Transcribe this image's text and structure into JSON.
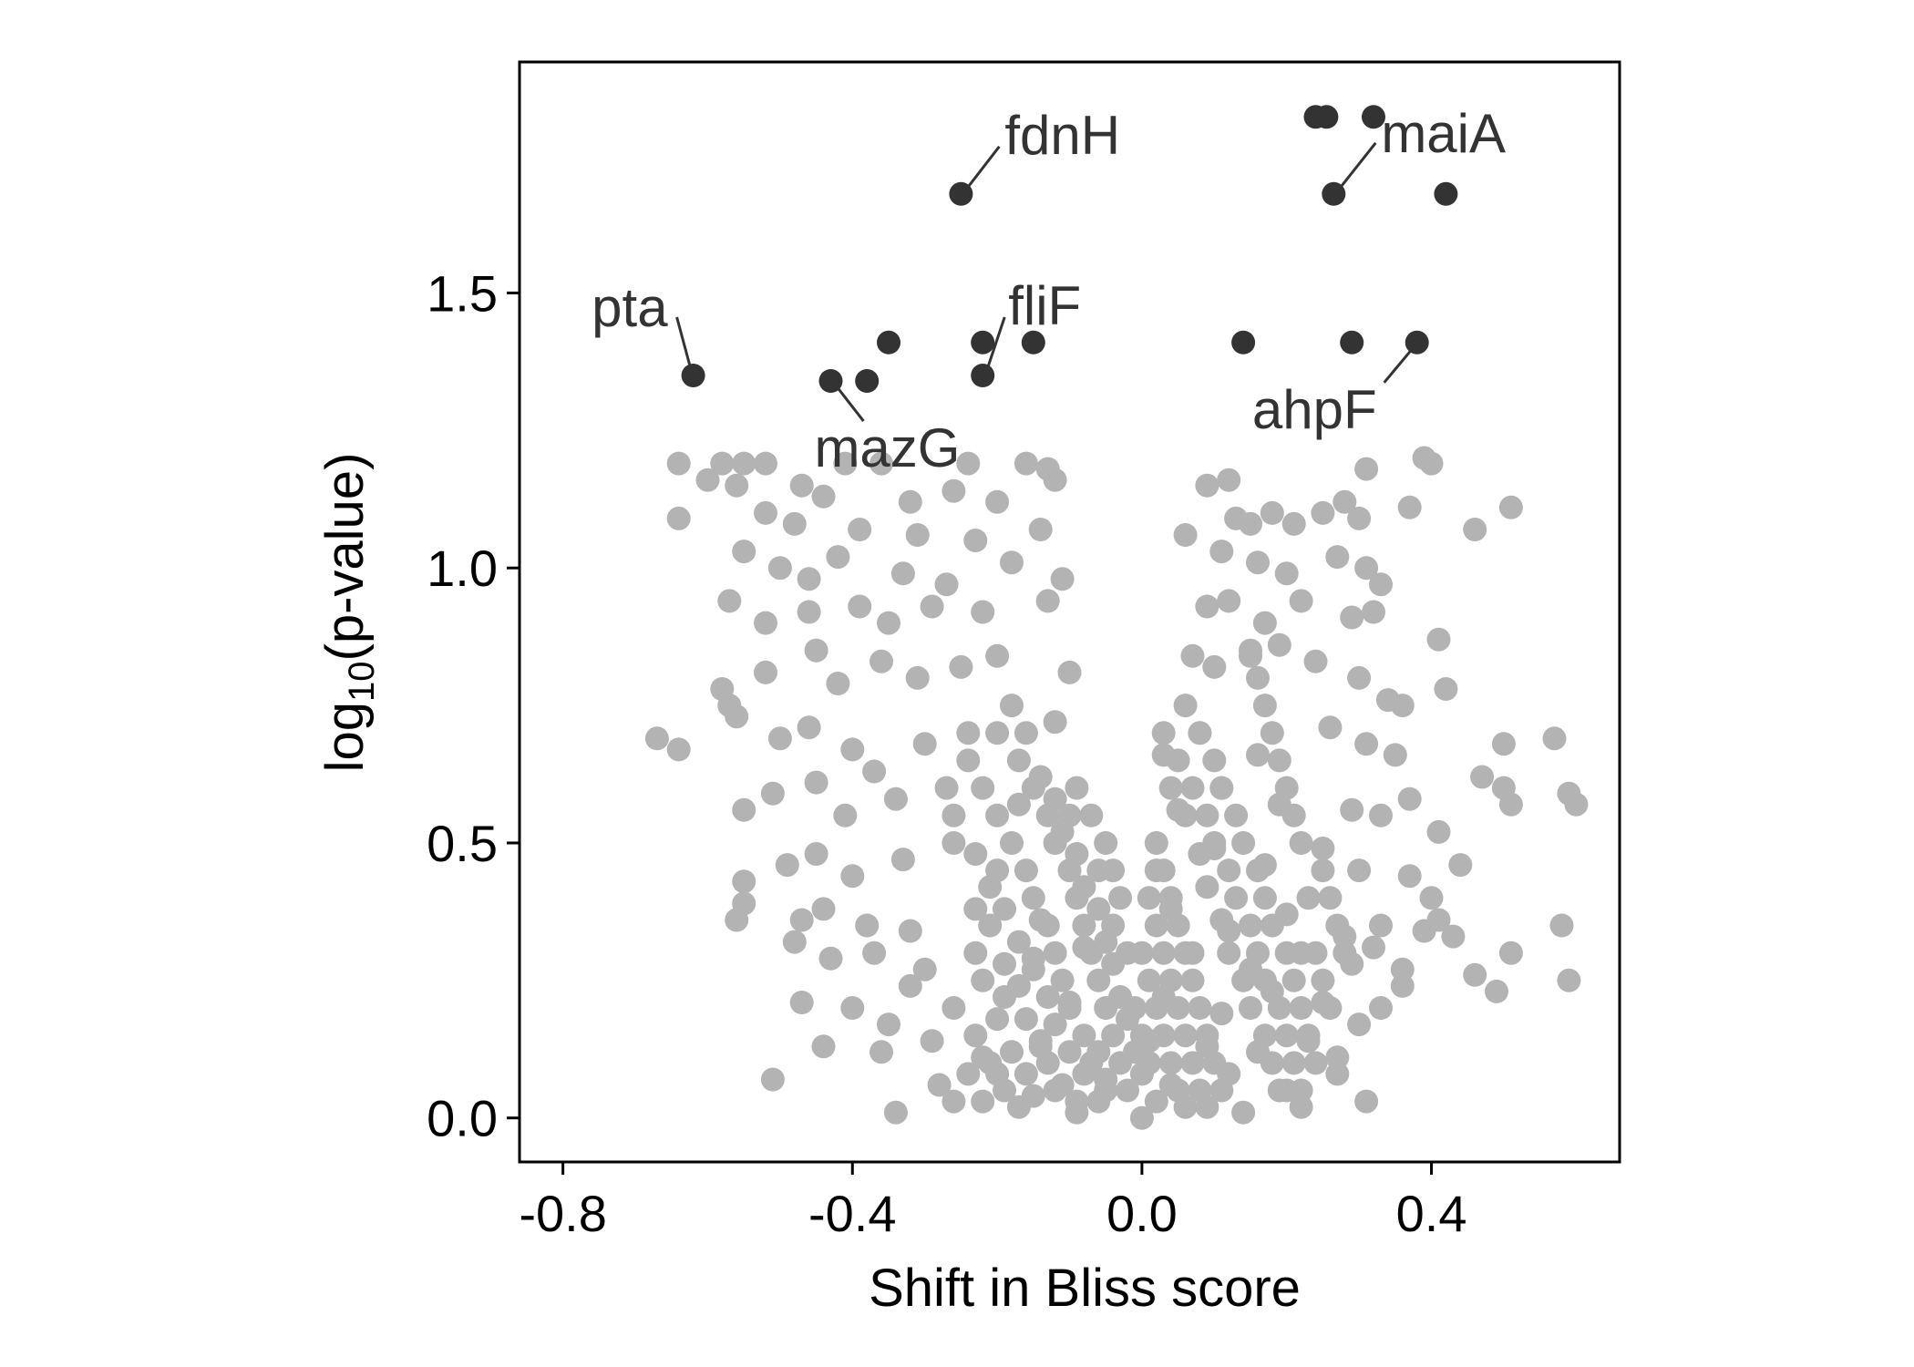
{
  "chart_data": {
    "type": "scatter",
    "xlabel": "Shift in Bliss score",
    "ylabel_main": "log",
    "ylabel_sub": "10",
    "ylabel_rest": "(p-value)",
    "xlim": [
      -0.86,
      0.66
    ],
    "ylim": [
      -0.08,
      1.92
    ],
    "xticks": [
      -0.8,
      -0.4,
      0.0,
      0.4
    ],
    "xtick_labels": [
      "-0.8",
      "-0.4",
      "0.0",
      "0.4"
    ],
    "yticks": [
      0.0,
      0.5,
      1.0,
      1.5
    ],
    "ytick_labels": [
      "0.0",
      "0.5",
      "1.0",
      "1.5"
    ],
    "grid": false,
    "colors": {
      "significant": "#333333",
      "background": "#b3b3b3",
      "label": "#333333"
    },
    "highlighted_points": [
      {
        "x": 0.24,
        "y": 1.82
      },
      {
        "x": 0.255,
        "y": 1.82
      },
      {
        "x": 0.32,
        "y": 1.82
      },
      {
        "x": -0.25,
        "y": 1.68
      },
      {
        "x": 0.265,
        "y": 1.68
      },
      {
        "x": 0.42,
        "y": 1.68
      },
      {
        "x": -0.35,
        "y": 1.41
      },
      {
        "x": -0.22,
        "y": 1.41
      },
      {
        "x": -0.15,
        "y": 1.41
      },
      {
        "x": 0.14,
        "y": 1.41
      },
      {
        "x": 0.29,
        "y": 1.41
      },
      {
        "x": 0.38,
        "y": 1.41
      },
      {
        "x": -0.62,
        "y": 1.35
      },
      {
        "x": -0.43,
        "y": 1.34
      },
      {
        "x": -0.38,
        "y": 1.34
      },
      {
        "x": -0.22,
        "y": 1.35
      }
    ],
    "annotations": [
      {
        "text": "fdnH",
        "x": -0.25,
        "y": 1.68
      },
      {
        "text": "maiA",
        "x": 0.265,
        "y": 1.68
      },
      {
        "text": "pta",
        "x": -0.62,
        "y": 1.35
      },
      {
        "text": "fliF",
        "x": -0.22,
        "y": 1.35
      },
      {
        "text": "mazG",
        "x": -0.43,
        "y": 1.34
      },
      {
        "text": "ahpF",
        "x": 0.38,
        "y": 1.41
      }
    ],
    "background_points": [
      [
        -0.64,
        1.19
      ],
      [
        -0.58,
        1.19
      ],
      [
        -0.55,
        1.19
      ],
      [
        -0.52,
        1.19
      ],
      [
        -0.41,
        1.19
      ],
      [
        -0.36,
        1.19
      ],
      [
        -0.24,
        1.19
      ],
      [
        -0.16,
        1.19
      ],
      [
        -0.13,
        1.18
      ],
      [
        -0.12,
        1.16
      ],
      [
        -0.6,
        1.16
      ],
      [
        -0.56,
        1.15
      ],
      [
        -0.47,
        1.15
      ],
      [
        -0.44,
        1.13
      ],
      [
        -0.32,
        1.12
      ],
      [
        -0.26,
        1.14
      ],
      [
        -0.2,
        1.12
      ],
      [
        0.09,
        1.15
      ],
      [
        0.12,
        1.16
      ],
      [
        0.31,
        1.18
      ],
      [
        -0.64,
        1.09
      ],
      [
        -0.52,
        1.1
      ],
      [
        -0.48,
        1.08
      ],
      [
        -0.39,
        1.07
      ],
      [
        -0.31,
        1.06
      ],
      [
        -0.23,
        1.05
      ],
      [
        -0.14,
        1.07
      ],
      [
        0.06,
        1.06
      ],
      [
        0.13,
        1.09
      ],
      [
        0.39,
        1.2
      ],
      [
        0.4,
        1.19
      ],
      [
        0.37,
        1.11
      ],
      [
        0.51,
        1.11
      ],
      [
        0.46,
        1.07
      ],
      [
        0.3,
        1.09
      ],
      [
        0.25,
        1.1
      ],
      [
        0.21,
        1.08
      ],
      [
        0.18,
        1.1
      ],
      [
        0.15,
        1.08
      ],
      [
        0.28,
        1.12
      ],
      [
        -0.55,
        1.03
      ],
      [
        -0.5,
        1.0
      ],
      [
        -0.46,
        0.98
      ],
      [
        -0.42,
        1.02
      ],
      [
        -0.33,
        0.99
      ],
      [
        -0.27,
        0.97
      ],
      [
        -0.18,
        1.01
      ],
      [
        -0.11,
        0.98
      ],
      [
        0.11,
        1.03
      ],
      [
        0.16,
        1.01
      ],
      [
        0.2,
        0.99
      ],
      [
        0.27,
        1.02
      ],
      [
        0.31,
        1.0
      ],
      [
        0.33,
        0.97
      ],
      [
        -0.57,
        0.94
      ],
      [
        -0.52,
        0.9
      ],
      [
        -0.46,
        0.92
      ],
      [
        -0.39,
        0.93
      ],
      [
        -0.35,
        0.9
      ],
      [
        -0.29,
        0.93
      ],
      [
        -0.22,
        0.92
      ],
      [
        -0.13,
        0.94
      ],
      [
        0.09,
        0.93
      ],
      [
        0.12,
        0.94
      ],
      [
        0.17,
        0.9
      ],
      [
        0.22,
        0.94
      ],
      [
        0.29,
        0.91
      ],
      [
        0.32,
        0.92
      ],
      [
        -0.58,
        0.78
      ],
      [
        -0.57,
        0.75
      ],
      [
        -0.56,
        0.73
      ],
      [
        -0.52,
        0.81
      ],
      [
        -0.45,
        0.85
      ],
      [
        -0.42,
        0.79
      ],
      [
        -0.36,
        0.83
      ],
      [
        -0.31,
        0.8
      ],
      [
        -0.25,
        0.82
      ],
      [
        -0.2,
        0.84
      ],
      [
        -0.1,
        0.81
      ],
      [
        0.07,
        0.84
      ],
      [
        0.1,
        0.82
      ],
      [
        0.15,
        0.84
      ],
      [
        0.19,
        0.86
      ],
      [
        0.24,
        0.83
      ],
      [
        0.3,
        0.8
      ],
      [
        0.34,
        0.76
      ],
      [
        0.36,
        0.75
      ],
      [
        0.41,
        0.87
      ],
      [
        0.42,
        0.78
      ],
      [
        -0.67,
        0.69
      ],
      [
        -0.64,
        0.67
      ],
      [
        -0.5,
        0.69
      ],
      [
        -0.46,
        0.71
      ],
      [
        -0.4,
        0.67
      ],
      [
        -0.37,
        0.63
      ],
      [
        -0.3,
        0.68
      ],
      [
        -0.24,
        0.7
      ],
      [
        -0.12,
        0.72
      ],
      [
        0.03,
        0.66
      ],
      [
        0.08,
        0.7
      ],
      [
        0.16,
        0.66
      ],
      [
        0.26,
        0.71
      ],
      [
        0.31,
        0.68
      ],
      [
        0.35,
        0.66
      ],
      [
        0.57,
        0.69
      ],
      [
        0.59,
        0.59
      ],
      [
        0.6,
        0.57
      ],
      [
        0.5,
        0.68
      ],
      [
        0.47,
        0.62
      ],
      [
        0.5,
        0.6
      ],
      [
        -0.55,
        0.56
      ],
      [
        -0.51,
        0.59
      ],
      [
        -0.45,
        0.61
      ],
      [
        -0.41,
        0.55
      ],
      [
        -0.34,
        0.58
      ],
      [
        -0.27,
        0.6
      ],
      [
        -0.17,
        0.57
      ],
      [
        -0.1,
        0.55
      ],
      [
        0.05,
        0.56
      ],
      [
        0.11,
        0.6
      ],
      [
        0.19,
        0.57
      ],
      [
        0.29,
        0.56
      ],
      [
        0.33,
        0.55
      ],
      [
        0.37,
        0.58
      ],
      [
        0.41,
        0.52
      ],
      [
        0.51,
        0.57
      ],
      [
        0.44,
        0.46
      ],
      [
        -0.55,
        0.43
      ],
      [
        -0.55,
        0.39
      ],
      [
        -0.56,
        0.36
      ],
      [
        -0.49,
        0.46
      ],
      [
        -0.45,
        0.48
      ],
      [
        -0.4,
        0.44
      ],
      [
        -0.33,
        0.47
      ],
      [
        -0.26,
        0.5
      ],
      [
        -0.2,
        0.45
      ],
      [
        -0.06,
        0.45
      ],
      [
        0.02,
        0.45
      ],
      [
        0.1,
        0.49
      ],
      [
        0.17,
        0.46
      ],
      [
        0.25,
        0.49
      ],
      [
        0.3,
        0.45
      ],
      [
        0.37,
        0.44
      ],
      [
        0.4,
        0.4
      ],
      [
        -0.47,
        0.36
      ],
      [
        -0.44,
        0.38
      ],
      [
        -0.38,
        0.35
      ],
      [
        -0.32,
        0.34
      ],
      [
        -0.23,
        0.38
      ],
      [
        -0.14,
        0.36
      ],
      [
        -0.04,
        0.35
      ],
      [
        0.04,
        0.38
      ],
      [
        0.12,
        0.34
      ],
      [
        0.2,
        0.37
      ],
      [
        0.28,
        0.33
      ],
      [
        0.33,
        0.35
      ],
      [
        0.39,
        0.34
      ],
      [
        0.41,
        0.36
      ],
      [
        0.43,
        0.33
      ],
      [
        0.58,
        0.35
      ],
      [
        -0.48,
        0.32
      ],
      [
        -0.43,
        0.29
      ],
      [
        -0.37,
        0.3
      ],
      [
        -0.3,
        0.27
      ],
      [
        -0.23,
        0.3
      ],
      [
        -0.15,
        0.29
      ],
      [
        -0.08,
        0.31
      ],
      [
        0.07,
        0.3
      ],
      [
        0.15,
        0.27
      ],
      [
        0.22,
        0.3
      ],
      [
        0.29,
        0.28
      ],
      [
        0.32,
        0.31
      ],
      [
        0.36,
        0.27
      ],
      [
        0.46,
        0.26
      ],
      [
        0.51,
        0.3
      ],
      [
        0.49,
        0.23
      ],
      [
        0.59,
        0.25
      ],
      [
        -0.47,
        0.21
      ],
      [
        -0.4,
        0.2
      ],
      [
        -0.35,
        0.17
      ],
      [
        -0.32,
        0.24
      ],
      [
        -0.26,
        0.2
      ],
      [
        -0.19,
        0.22
      ],
      [
        -0.1,
        0.21
      ],
      [
        0.03,
        0.22
      ],
      [
        0.11,
        0.19
      ],
      [
        0.18,
        0.23
      ],
      [
        0.25,
        0.21
      ],
      [
        0.3,
        0.17
      ],
      [
        0.33,
        0.2
      ],
      [
        0.36,
        0.24
      ],
      [
        -0.44,
        0.13
      ],
      [
        -0.36,
        0.12
      ],
      [
        -0.29,
        0.14
      ],
      [
        -0.22,
        0.11
      ],
      [
        -0.14,
        0.13
      ],
      [
        -0.06,
        0.12
      ],
      [
        0.01,
        0.14
      ],
      [
        0.09,
        0.13
      ],
      [
        0.16,
        0.12
      ],
      [
        0.23,
        0.14
      ],
      [
        0.27,
        0.11
      ],
      [
        -0.51,
        0.07
      ],
      [
        -0.28,
        0.06
      ],
      [
        -0.2,
        0.08
      ],
      [
        -0.12,
        0.05
      ],
      [
        -0.05,
        0.07
      ],
      [
        0.04,
        0.06
      ],
      [
        0.12,
        0.08
      ],
      [
        0.2,
        0.05
      ],
      [
        0.27,
        0.08
      ],
      [
        0.31,
        0.03
      ],
      [
        -0.34,
        0.01
      ],
      [
        -0.26,
        0.03
      ],
      [
        -0.17,
        0.02
      ],
      [
        -0.09,
        0.01
      ],
      [
        0.0,
        0.0
      ],
      [
        0.06,
        0.02
      ],
      [
        0.14,
        0.01
      ],
      [
        0.22,
        0.02
      ],
      [
        -0.24,
        0.65
      ],
      [
        -0.22,
        0.6
      ],
      [
        -0.2,
        0.55
      ],
      [
        -0.18,
        0.5
      ],
      [
        -0.16,
        0.45
      ],
      [
        -0.15,
        0.4
      ],
      [
        -0.13,
        0.35
      ],
      [
        -0.12,
        0.3
      ],
      [
        -0.11,
        0.25
      ],
      [
        -0.1,
        0.2
      ],
      [
        -0.08,
        0.15
      ],
      [
        -0.07,
        0.1
      ],
      [
        -0.05,
        0.05
      ],
      [
        -0.26,
        0.55
      ],
      [
        -0.23,
        0.48
      ],
      [
        -0.21,
        0.42
      ],
      [
        -0.19,
        0.38
      ],
      [
        -0.17,
        0.32
      ],
      [
        -0.15,
        0.27
      ],
      [
        -0.13,
        0.22
      ],
      [
        -0.12,
        0.17
      ],
      [
        -0.1,
        0.12
      ],
      [
        -0.08,
        0.08
      ],
      [
        -0.06,
        0.03
      ],
      [
        -0.2,
        0.7
      ],
      [
        -0.17,
        0.65
      ],
      [
        -0.15,
        0.6
      ],
      [
        -0.13,
        0.55
      ],
      [
        -0.12,
        0.5
      ],
      [
        -0.1,
        0.45
      ],
      [
        -0.09,
        0.4
      ],
      [
        -0.08,
        0.35
      ],
      [
        -0.07,
        0.3
      ],
      [
        -0.06,
        0.25
      ],
      [
        -0.05,
        0.2
      ],
      [
        -0.04,
        0.15
      ],
      [
        -0.03,
        0.1
      ],
      [
        -0.02,
        0.05
      ],
      [
        -0.18,
        0.75
      ],
      [
        -0.16,
        0.7
      ],
      [
        -0.14,
        0.62
      ],
      [
        -0.12,
        0.58
      ],
      [
        -0.11,
        0.52
      ],
      [
        -0.09,
        0.48
      ],
      [
        -0.08,
        0.42
      ],
      [
        -0.06,
        0.38
      ],
      [
        -0.05,
        0.32
      ],
      [
        -0.04,
        0.28
      ],
      [
        -0.03,
        0.22
      ],
      [
        -0.02,
        0.18
      ],
      [
        -0.01,
        0.12
      ],
      [
        0.0,
        0.08
      ],
      [
        -0.21,
        0.35
      ],
      [
        -0.19,
        0.28
      ],
      [
        -0.17,
        0.24
      ],
      [
        -0.16,
        0.18
      ],
      [
        -0.14,
        0.14
      ],
      [
        -0.13,
        0.1
      ],
      [
        -0.11,
        0.06
      ],
      [
        -0.09,
        0.03
      ],
      [
        -0.22,
        0.25
      ],
      [
        -0.2,
        0.18
      ],
      [
        -0.18,
        0.12
      ],
      [
        -0.16,
        0.08
      ],
      [
        -0.15,
        0.04
      ],
      [
        -0.23,
        0.15
      ],
      [
        -0.21,
        0.1
      ],
      [
        -0.19,
        0.05
      ],
      [
        -0.24,
        0.08
      ],
      [
        -0.22,
        0.03
      ],
      [
        0.03,
        0.7
      ],
      [
        0.05,
        0.65
      ],
      [
        0.07,
        0.6
      ],
      [
        0.09,
        0.55
      ],
      [
        0.1,
        0.5
      ],
      [
        0.12,
        0.45
      ],
      [
        0.13,
        0.4
      ],
      [
        0.15,
        0.35
      ],
      [
        0.16,
        0.3
      ],
      [
        0.17,
        0.25
      ],
      [
        0.19,
        0.2
      ],
      [
        0.2,
        0.15
      ],
      [
        0.21,
        0.1
      ],
      [
        0.22,
        0.05
      ],
      [
        0.04,
        0.6
      ],
      [
        0.06,
        0.55
      ],
      [
        0.08,
        0.48
      ],
      [
        0.09,
        0.42
      ],
      [
        0.11,
        0.36
      ],
      [
        0.12,
        0.3
      ],
      [
        0.14,
        0.25
      ],
      [
        0.15,
        0.2
      ],
      [
        0.17,
        0.15
      ],
      [
        0.18,
        0.1
      ],
      [
        0.19,
        0.05
      ],
      [
        0.06,
        0.75
      ],
      [
        0.08,
        0.7
      ],
      [
        0.1,
        0.65
      ],
      [
        0.11,
        0.6
      ],
      [
        0.13,
        0.55
      ],
      [
        0.14,
        0.5
      ],
      [
        0.16,
        0.45
      ],
      [
        0.17,
        0.4
      ],
      [
        0.18,
        0.35
      ],
      [
        0.2,
        0.3
      ],
      [
        0.21,
        0.25
      ],
      [
        0.22,
        0.2
      ],
      [
        0.23,
        0.15
      ],
      [
        0.24,
        0.1
      ],
      [
        0.02,
        0.5
      ],
      [
        0.03,
        0.45
      ],
      [
        0.04,
        0.4
      ],
      [
        0.05,
        0.35
      ],
      [
        0.06,
        0.3
      ],
      [
        0.07,
        0.25
      ],
      [
        0.08,
        0.2
      ],
      [
        0.09,
        0.15
      ],
      [
        0.1,
        0.1
      ],
      [
        0.11,
        0.05
      ],
      [
        0.01,
        0.4
      ],
      [
        0.02,
        0.35
      ],
      [
        0.03,
        0.3
      ],
      [
        0.04,
        0.25
      ],
      [
        0.05,
        0.2
      ],
      [
        0.06,
        0.15
      ],
      [
        0.07,
        0.1
      ],
      [
        0.08,
        0.05
      ],
      [
        0.09,
        0.02
      ],
      [
        0.0,
        0.3
      ],
      [
        0.01,
        0.25
      ],
      [
        0.02,
        0.2
      ],
      [
        0.03,
        0.15
      ],
      [
        0.04,
        0.1
      ],
      [
        0.05,
        0.05
      ],
      [
        0.25,
        0.45
      ],
      [
        0.26,
        0.4
      ],
      [
        0.27,
        0.35
      ],
      [
        0.28,
        0.3
      ],
      [
        0.25,
        0.25
      ],
      [
        0.26,
        0.2
      ],
      [
        0.24,
        0.3
      ],
      [
        0.23,
        0.4
      ],
      [
        0.22,
        0.5
      ],
      [
        0.21,
        0.55
      ],
      [
        0.2,
        0.6
      ],
      [
        0.19,
        0.65
      ],
      [
        0.18,
        0.7
      ],
      [
        0.17,
        0.75
      ],
      [
        0.16,
        0.8
      ],
      [
        0.15,
        0.85
      ],
      [
        -0.03,
        0.4
      ],
      [
        -0.02,
        0.3
      ],
      [
        -0.01,
        0.2
      ],
      [
        0.0,
        0.15
      ],
      [
        0.01,
        0.1
      ],
      [
        0.02,
        0.03
      ],
      [
        -0.04,
        0.45
      ],
      [
        -0.07,
        0.55
      ],
      [
        -0.05,
        0.5
      ],
      [
        -0.09,
        0.6
      ]
    ]
  }
}
